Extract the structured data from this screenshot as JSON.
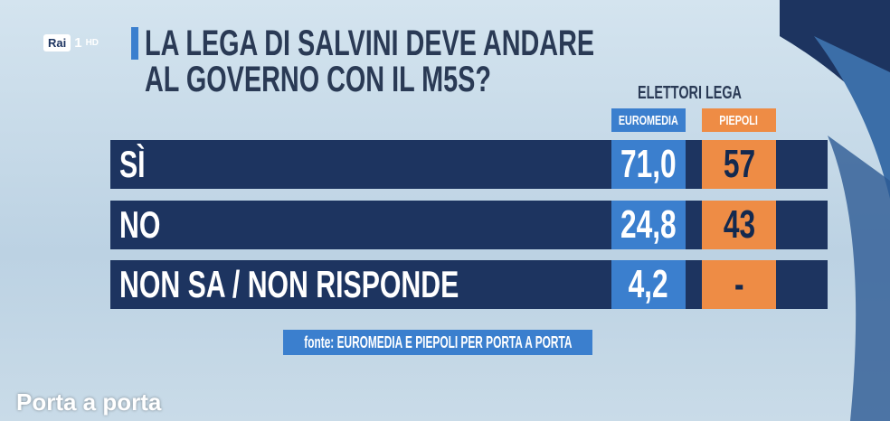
{
  "logo": {
    "brand": "Rai",
    "channel": "1",
    "quality": "HD"
  },
  "header": {
    "title_lines": [
      "LA LEGA DI SALVINI DEVE ANDARE",
      "AL GOVERNO CON IL M5S?"
    ]
  },
  "table": {
    "group_label": "ELETTORI LEGA",
    "columns": [
      "EUROMEDIA",
      "PIEPOLI"
    ],
    "rows": [
      [
        "SÌ",
        "71,0",
        "57"
      ],
      [
        "NO",
        "24,8",
        "43"
      ],
      [
        "NON SA / NON RISPONDE",
        "4,2",
        "-"
      ]
    ]
  },
  "source": "fonte: EUROMEDIA E PIEPOLI PER PORTA A PORTA",
  "caption": "Porta a porta"
}
